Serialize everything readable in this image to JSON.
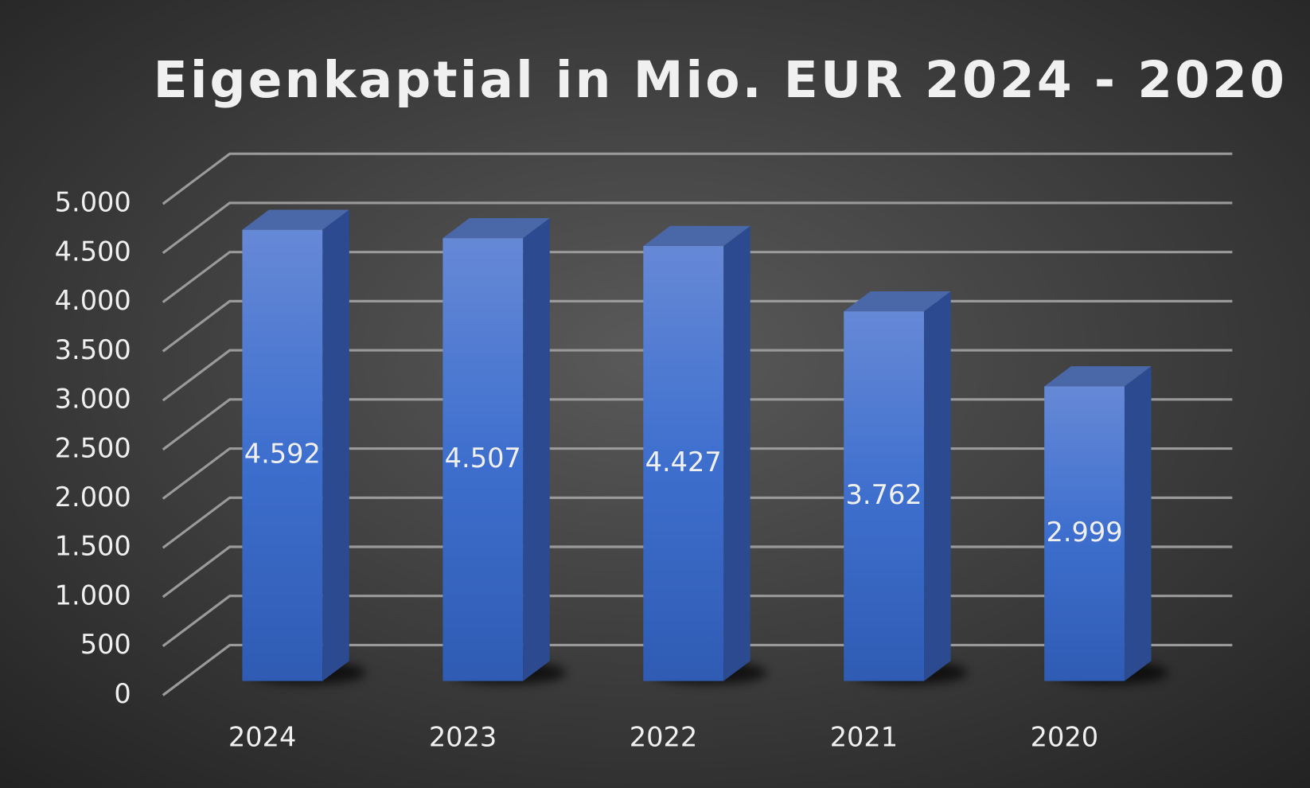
{
  "chart_data": {
    "type": "bar3d",
    "title": "Eigenkaptial in Mio. EUR 2024 - 2020",
    "categories": [
      "2024",
      "2023",
      "2022",
      "2021",
      "2020"
    ],
    "values": [
      4592,
      4507,
      4427,
      3762,
      2999
    ],
    "value_labels": [
      "4.592",
      "4.507",
      "4.427",
      "3.762",
      "2.999"
    ],
    "color": "#4472c4",
    "ylim": [
      0,
      5000
    ],
    "yticks": [
      0,
      500,
      {
        "value": 1000,
        "label": "1.000"
      },
      {
        "value": 1500,
        "label": "1.500"
      },
      {
        "value": 2000,
        "label": "2.000"
      },
      {
        "value": 2500,
        "label": "2.500"
      },
      {
        "value": 3000,
        "label": "3.000"
      },
      {
        "value": 3500,
        "label": "3.500"
      },
      {
        "value": 4000,
        "label": "4.000"
      },
      {
        "value": 4500,
        "label": "4.500"
      },
      {
        "value": 5000,
        "label": "5.000"
      }
    ],
    "grid": true
  }
}
